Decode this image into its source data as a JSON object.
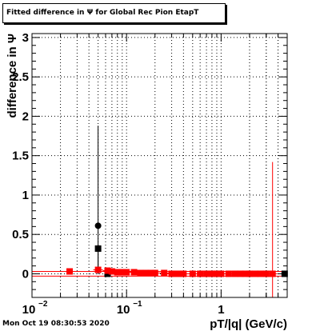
{
  "chart_data": {
    "type": "scatter",
    "title": "Fitted difference in  Ψ  for Global Rec Pion EtapT",
    "xlabel": "pT/|q| (GeV/c)",
    "ylabel": "difference in   Ψ",
    "x_scale": "log",
    "xlim": [
      0.01,
      5
    ],
    "ylim": [
      -0.3,
      3.05
    ],
    "grid": true,
    "x_ticks": [
      {
        "value": 0.01,
        "label": "10",
        "sup": "−2"
      },
      {
        "value": 0.1,
        "label": "10",
        "sup": "−1"
      },
      {
        "value": 1,
        "label": "1",
        "sup": ""
      }
    ],
    "y_ticks": [
      {
        "value": 0,
        "label": "0"
      },
      {
        "value": 0.5,
        "label": "0.5"
      },
      {
        "value": 1,
        "label": "1"
      },
      {
        "value": 1.5,
        "label": "1.5"
      },
      {
        "value": 2,
        "label": "2"
      },
      {
        "value": 2.5,
        "label": "2.5"
      },
      {
        "value": 3,
        "label": "3"
      }
    ],
    "series": [
      {
        "marker": "circle",
        "color": "#000000",
        "points": [
          {
            "x": 0.05,
            "y": 0.61,
            "err_low": 0.61,
            "err_high": 1.27
          }
        ]
      },
      {
        "marker": "square",
        "color": "#000000",
        "points": [
          {
            "x": 0.05,
            "y": 0.32,
            "err_low": 0.32,
            "err_high": 0.0
          },
          {
            "x": 0.063,
            "y": 0.0,
            "err_low": 0.0,
            "err_high": 0.0
          },
          {
            "x": 4.7,
            "y": 0.0,
            "err_low": 0.0,
            "err_high": 0.0
          }
        ]
      },
      {
        "marker": "square",
        "color": "#ff0000",
        "points": [
          {
            "x": 0.025,
            "y": 0.03
          },
          {
            "x": 0.05,
            "y": 0.05
          },
          {
            "x": 0.063,
            "y": 0.04
          },
          {
            "x": 0.07,
            "y": 0.03
          },
          {
            "x": 0.08,
            "y": 0.02
          },
          {
            "x": 0.09,
            "y": 0.02
          },
          {
            "x": 0.1,
            "y": 0.02
          },
          {
            "x": 0.12,
            "y": 0.02
          },
          {
            "x": 0.14,
            "y": 0.01
          },
          {
            "x": 0.16,
            "y": 0.01
          },
          {
            "x": 0.18,
            "y": 0.01
          },
          {
            "x": 0.2,
            "y": 0.01
          },
          {
            "x": 0.25,
            "y": 0.01
          },
          {
            "x": 0.3,
            "y": 0.0
          },
          {
            "x": 0.35,
            "y": 0.0
          },
          {
            "x": 0.4,
            "y": 0.0
          },
          {
            "x": 0.5,
            "y": 0.0
          },
          {
            "x": 0.6,
            "y": 0.0
          },
          {
            "x": 0.7,
            "y": 0.0
          },
          {
            "x": 0.8,
            "y": 0.0
          },
          {
            "x": 0.9,
            "y": 0.0
          },
          {
            "x": 1.0,
            "y": 0.0
          },
          {
            "x": 1.2,
            "y": 0.0
          },
          {
            "x": 1.4,
            "y": 0.0
          },
          {
            "x": 1.6,
            "y": 0.0
          },
          {
            "x": 1.8,
            "y": 0.0
          },
          {
            "x": 2.0,
            "y": 0.0
          },
          {
            "x": 2.3,
            "y": 0.0
          },
          {
            "x": 2.6,
            "y": 0.0
          },
          {
            "x": 3.0,
            "y": 0.0
          },
          {
            "x": 3.5,
            "y": 0.0,
            "err_low": 0.3,
            "err_high": 1.42
          }
        ]
      }
    ],
    "red_band": {
      "y": 0.0,
      "half_width": 0.03,
      "color": "#ff0000"
    }
  },
  "footer": {
    "timestamp": "Mon Oct 19 08:30:53 2020"
  }
}
